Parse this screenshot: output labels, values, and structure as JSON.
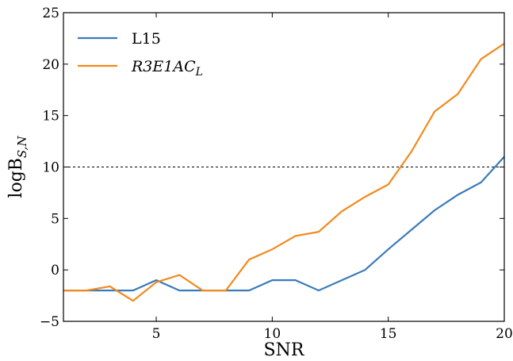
{
  "chart_data": {
    "type": "line",
    "xlabel": "SNR",
    "ylabel_main": "logB",
    "ylabel_sub": "S,N",
    "xlim": [
      1,
      20
    ],
    "ylim": [
      -5,
      25
    ],
    "xticks": [
      5,
      10,
      15,
      20
    ],
    "yticks": [
      -5,
      0,
      5,
      10,
      15,
      20,
      25
    ],
    "reference_line": {
      "y": 10,
      "style": "dashed",
      "color": "#000000"
    },
    "legend_placement": "top-left",
    "series": [
      {
        "name": "L15",
        "color": "#3a7bba",
        "x": [
          1,
          2,
          3,
          4,
          5,
          6,
          7,
          8,
          9,
          10,
          11,
          12,
          13,
          14,
          15,
          16,
          17,
          18,
          19,
          20
        ],
        "y": [
          -2,
          -2,
          -2,
          -2,
          -1,
          -2,
          -2,
          -2,
          -2,
          -1,
          -1,
          -2,
          -1,
          0,
          2,
          3.9,
          5.8,
          7.3,
          8.5,
          11
        ]
      },
      {
        "name_main": "R3E1AC",
        "name_sub": "L",
        "color": "#f28a1c",
        "x": [
          1,
          2,
          3,
          4,
          5,
          6,
          7,
          8,
          9,
          10,
          11,
          12,
          13,
          14,
          15,
          16,
          17,
          18,
          19,
          20
        ],
        "y": [
          -2,
          -2,
          -1.6,
          -3,
          -1.2,
          -0.5,
          -2,
          -2,
          1,
          2,
          3.3,
          3.7,
          5.7,
          7.1,
          8.3,
          11.5,
          15.4,
          17.1,
          20.5,
          22
        ]
      }
    ]
  }
}
